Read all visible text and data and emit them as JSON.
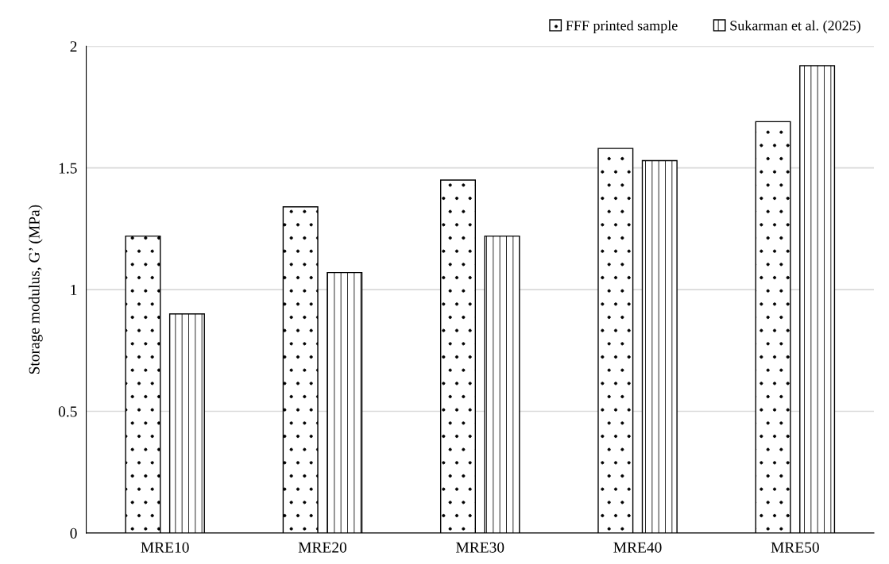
{
  "chart_data": {
    "type": "bar",
    "ylabel": "Storage modulus, G’ (MPa)",
    "categories": [
      "MRE10",
      "MRE20",
      "MRE30",
      "MRE40",
      "MRE50"
    ],
    "series": [
      {
        "name": "FFF printed sample",
        "color": "#000000",
        "values": [
          1.22,
          1.34,
          1.45,
          1.58,
          1.69
        ]
      },
      {
        "name": "Sukarman et al. (2025)",
        "color": "#000000",
        "values": [
          0.9,
          1.07,
          1.22,
          1.53,
          1.92
        ]
      }
    ],
    "ylim": [
      0,
      2
    ],
    "yticks": [
      0,
      0.5,
      1,
      1.5,
      2
    ],
    "grid": "y",
    "legend": "top right"
  }
}
